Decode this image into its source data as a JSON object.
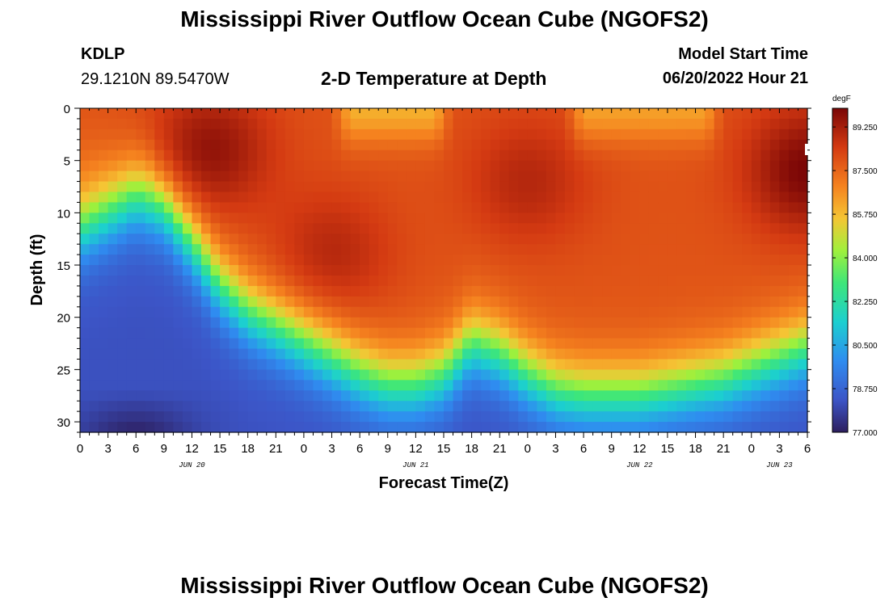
{
  "header": {
    "title": "Mississippi River Outflow Ocean Cube (NGOFS2)",
    "station_id": "KDLP",
    "coordinates": "29.1210N  89.5470W",
    "subtitle": "2-D Temperature at Depth",
    "model_start_label": "Model Start Time",
    "model_start_value": "06/20/2022 Hour 21"
  },
  "footer": {
    "title": "Mississippi River Outflow Ocean Cube (NGOFS2)"
  },
  "chart_data": {
    "type": "heatmap",
    "title": "2-D Temperature at Depth",
    "xlabel": "Forecast Time(Z)",
    "ylabel": "Depth (ft)",
    "x_unit": "hours since JUN 20 00Z",
    "xlim": [
      0,
      78
    ],
    "ylim": [
      31,
      0
    ],
    "x_tick_values": [
      0,
      3,
      6,
      9,
      12,
      15,
      18,
      21,
      24,
      27,
      30,
      33,
      36,
      39,
      42,
      45,
      48,
      51,
      54,
      57,
      60,
      63,
      66,
      69,
      72,
      75,
      78
    ],
    "x_tick_labels": [
      "0",
      "3",
      "6",
      "9",
      "12",
      "15",
      "18",
      "21",
      "0",
      "3",
      "6",
      "9",
      "12",
      "15",
      "18",
      "21",
      "0",
      "3",
      "6",
      "9",
      "12",
      "15",
      "18",
      "21",
      "0",
      "3",
      "6"
    ],
    "y_tick_values": [
      0,
      5,
      10,
      15,
      20,
      25,
      30
    ],
    "y_tick_labels": [
      "0",
      "5",
      "10",
      "15",
      "20",
      "25",
      "30"
    ],
    "date_labels": [
      {
        "text": "JUN 20",
        "x": 12
      },
      {
        "text": "JUN 21",
        "x": 36
      },
      {
        "text": "JUN 22",
        "x": 60
      },
      {
        "text": "JUN 23",
        "x": 75
      }
    ],
    "colorbar": {
      "unit": "degF",
      "min": 77.0,
      "max": 90.0,
      "tick_values": [
        89.25,
        87.5,
        85.75,
        84.0,
        82.25,
        80.5,
        78.75,
        77.0
      ],
      "tick_labels": [
        "89.250",
        "87.500",
        "85.750",
        "84.000",
        "82.250",
        "80.500",
        "78.750",
        "77.000"
      ]
    },
    "mixed_layer_depth_ft": [
      {
        "x": 0,
        "depth": 11.5
      },
      {
        "x": 3,
        "depth": 10.0
      },
      {
        "x": 6,
        "depth": 8.5
      },
      {
        "x": 9,
        "depth": 9.5
      },
      {
        "x": 12,
        "depth": 13.0
      },
      {
        "x": 15,
        "depth": 17.0
      },
      {
        "x": 18,
        "depth": 19.5
      },
      {
        "x": 21,
        "depth": 21.0
      },
      {
        "x": 24,
        "depth": 22.5
      },
      {
        "x": 27,
        "depth": 24.0
      },
      {
        "x": 30,
        "depth": 25.5
      },
      {
        "x": 33,
        "depth": 26.5
      },
      {
        "x": 36,
        "depth": 26.5
      },
      {
        "x": 39,
        "depth": 25.5
      },
      {
        "x": 42,
        "depth": 22.5
      },
      {
        "x": 45,
        "depth": 23.5
      },
      {
        "x": 48,
        "depth": 25.5
      },
      {
        "x": 51,
        "depth": 27.0
      },
      {
        "x": 54,
        "depth": 27.5
      },
      {
        "x": 57,
        "depth": 27.5
      },
      {
        "x": 60,
        "depth": 27.5
      },
      {
        "x": 63,
        "depth": 27.0
      },
      {
        "x": 66,
        "depth": 26.5
      },
      {
        "x": 69,
        "depth": 26.0
      },
      {
        "x": 72,
        "depth": 25.0
      },
      {
        "x": 75,
        "depth": 24.0
      },
      {
        "x": 78,
        "depth": 23.0
      }
    ],
    "surface_warm_centers": [
      {
        "x": 14,
        "depth": 4,
        "value": 89.6
      },
      {
        "x": 27,
        "depth": 14,
        "value": 89.0
      },
      {
        "x": 48,
        "depth": 7,
        "value": 89.0
      },
      {
        "x": 78,
        "depth": 6,
        "value": 90.0
      }
    ],
    "surface_cool_bands": [
      {
        "x_start": 29,
        "x_end": 38,
        "depth": 0,
        "value": 86.0
      },
      {
        "x_start": 54,
        "x_end": 67,
        "depth": 0,
        "value": 86.3
      }
    ],
    "bottom_minimum": {
      "x": 6,
      "depth": 30.8,
      "value": 77.0
    }
  }
}
